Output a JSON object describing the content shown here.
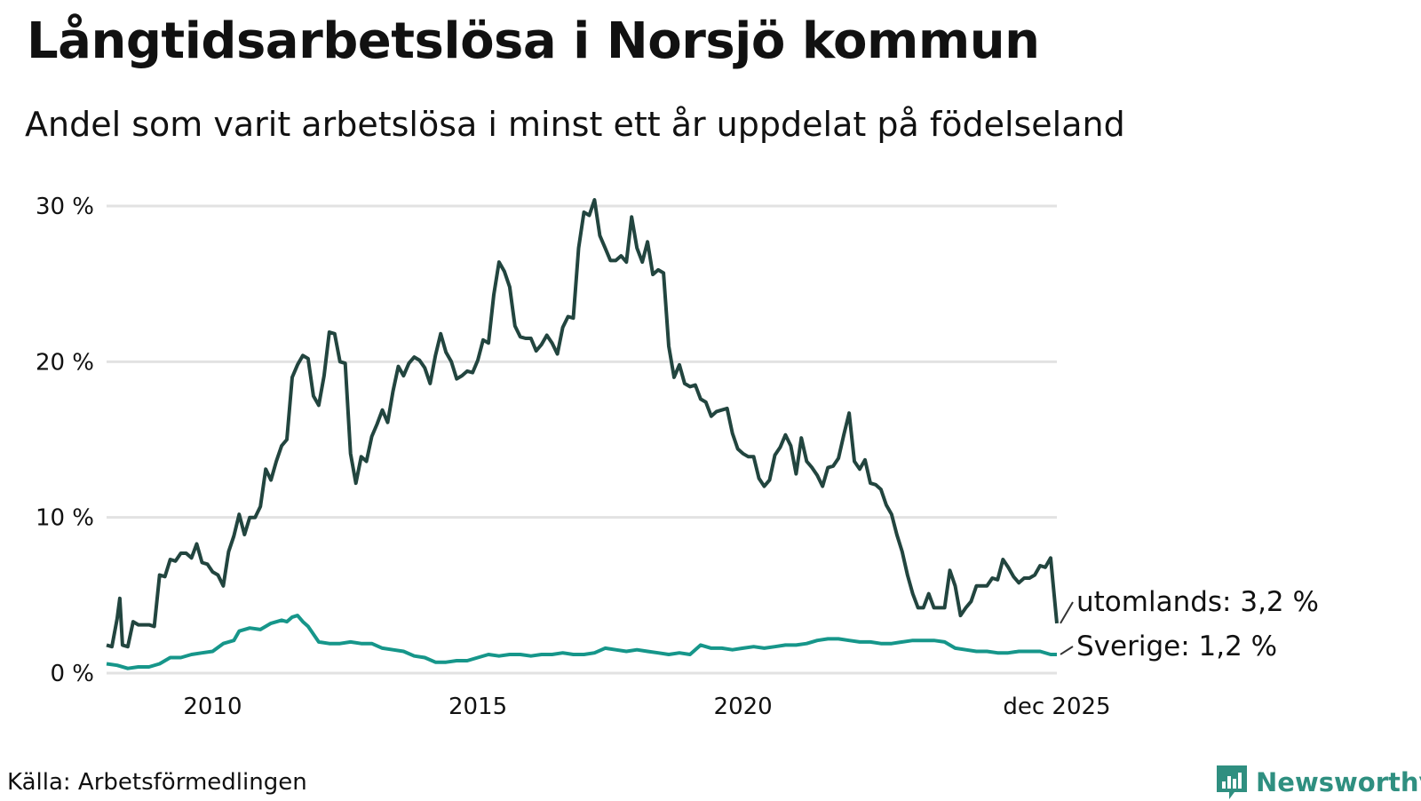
{
  "title": "Långtidsarbetslösa i Norsjö kommun",
  "subtitle": "Andel som varit arbetslösa i minst ett år uppdelat på födelseland",
  "source": "Källa: Arbetsförmedlingen",
  "brand": "Newsworthy",
  "brand_icon": "newsworthy-logo-icon",
  "chart_data": {
    "type": "line",
    "title": "Långtidsarbetslösa i Norsjö kommun",
    "xlabel": "",
    "ylabel": "",
    "xlim": [
      2008.0,
      2025.917
    ],
    "ylim": [
      0,
      30
    ],
    "yticks": [
      0,
      10,
      20,
      30
    ],
    "yticklabels": [
      "0 %",
      "10 %",
      "20 %",
      "30 %"
    ],
    "xticks": [
      2010,
      2015,
      2020,
      2025.917
    ],
    "xticklabels": [
      "2010",
      "2015",
      "2020",
      "dec 2025"
    ],
    "grid": true,
    "legend": "end-of-line labels",
    "series": [
      {
        "name": "utomlands",
        "label": "utomlands: 3,2 %",
        "color": "#22453f",
        "points": [
          [
            2008.0,
            1.8
          ],
          [
            2008.1,
            1.7
          ],
          [
            2008.2,
            3.5
          ],
          [
            2008.25,
            4.8
          ],
          [
            2008.3,
            1.8
          ],
          [
            2008.4,
            1.7
          ],
          [
            2008.5,
            3.3
          ],
          [
            2008.6,
            3.1
          ],
          [
            2008.8,
            3.1
          ],
          [
            2008.9,
            3.0
          ],
          [
            2009.0,
            6.3
          ],
          [
            2009.1,
            6.2
          ],
          [
            2009.2,
            7.3
          ],
          [
            2009.3,
            7.2
          ],
          [
            2009.4,
            7.7
          ],
          [
            2009.5,
            7.7
          ],
          [
            2009.6,
            7.4
          ],
          [
            2009.7,
            8.3
          ],
          [
            2009.8,
            7.1
          ],
          [
            2009.9,
            7.0
          ],
          [
            2010.0,
            6.5
          ],
          [
            2010.1,
            6.3
          ],
          [
            2010.2,
            5.6
          ],
          [
            2010.3,
            7.8
          ],
          [
            2010.4,
            8.8
          ],
          [
            2010.5,
            10.2
          ],
          [
            2010.6,
            8.9
          ],
          [
            2010.7,
            10.0
          ],
          [
            2010.8,
            10.0
          ],
          [
            2010.9,
            10.7
          ],
          [
            2011.0,
            13.1
          ],
          [
            2011.1,
            12.4
          ],
          [
            2011.2,
            13.6
          ],
          [
            2011.3,
            14.6
          ],
          [
            2011.4,
            15.0
          ],
          [
            2011.5,
            19.0
          ],
          [
            2011.6,
            19.8
          ],
          [
            2011.7,
            20.4
          ],
          [
            2011.8,
            20.2
          ],
          [
            2011.9,
            17.8
          ],
          [
            2012.0,
            17.2
          ],
          [
            2012.1,
            19.1
          ],
          [
            2012.2,
            21.9
          ],
          [
            2012.3,
            21.8
          ],
          [
            2012.4,
            20.0
          ],
          [
            2012.5,
            19.9
          ],
          [
            2012.6,
            14.1
          ],
          [
            2012.7,
            12.2
          ],
          [
            2012.8,
            13.9
          ],
          [
            2012.9,
            13.6
          ],
          [
            2013.0,
            15.2
          ],
          [
            2013.1,
            16.0
          ],
          [
            2013.2,
            16.9
          ],
          [
            2013.3,
            16.1
          ],
          [
            2013.4,
            18.1
          ],
          [
            2013.5,
            19.7
          ],
          [
            2013.6,
            19.1
          ],
          [
            2013.7,
            19.9
          ],
          [
            2013.8,
            20.3
          ],
          [
            2013.9,
            20.1
          ],
          [
            2014.0,
            19.6
          ],
          [
            2014.1,
            18.6
          ],
          [
            2014.2,
            20.4
          ],
          [
            2014.3,
            21.8
          ],
          [
            2014.4,
            20.6
          ],
          [
            2014.5,
            20.0
          ],
          [
            2014.6,
            18.9
          ],
          [
            2014.7,
            19.1
          ],
          [
            2014.8,
            19.4
          ],
          [
            2014.9,
            19.3
          ],
          [
            2015.0,
            20.1
          ],
          [
            2015.1,
            21.4
          ],
          [
            2015.2,
            21.2
          ],
          [
            2015.3,
            24.3
          ],
          [
            2015.4,
            26.4
          ],
          [
            2015.5,
            25.8
          ],
          [
            2015.6,
            24.8
          ],
          [
            2015.7,
            22.3
          ],
          [
            2015.8,
            21.6
          ],
          [
            2015.9,
            21.5
          ],
          [
            2016.0,
            21.5
          ],
          [
            2016.1,
            20.7
          ],
          [
            2016.2,
            21.1
          ],
          [
            2016.3,
            21.7
          ],
          [
            2016.4,
            21.2
          ],
          [
            2016.5,
            20.5
          ],
          [
            2016.6,
            22.2
          ],
          [
            2016.7,
            22.9
          ],
          [
            2016.8,
            22.8
          ],
          [
            2016.9,
            27.3
          ],
          [
            2017.0,
            29.6
          ],
          [
            2017.1,
            29.4
          ],
          [
            2017.2,
            30.4
          ],
          [
            2017.3,
            28.1
          ],
          [
            2017.4,
            27.3
          ],
          [
            2017.5,
            26.5
          ],
          [
            2017.6,
            26.5
          ],
          [
            2017.7,
            26.8
          ],
          [
            2017.8,
            26.4
          ],
          [
            2017.9,
            29.3
          ],
          [
            2018.0,
            27.3
          ],
          [
            2018.1,
            26.4
          ],
          [
            2018.2,
            27.7
          ],
          [
            2018.3,
            25.6
          ],
          [
            2018.4,
            25.9
          ],
          [
            2018.5,
            25.7
          ],
          [
            2018.6,
            21.0
          ],
          [
            2018.7,
            19.0
          ],
          [
            2018.8,
            19.8
          ],
          [
            2018.9,
            18.6
          ],
          [
            2019.0,
            18.4
          ],
          [
            2019.1,
            18.5
          ],
          [
            2019.2,
            17.6
          ],
          [
            2019.3,
            17.4
          ],
          [
            2019.4,
            16.5
          ],
          [
            2019.5,
            16.8
          ],
          [
            2019.6,
            16.9
          ],
          [
            2019.7,
            17.0
          ],
          [
            2019.8,
            15.4
          ],
          [
            2019.9,
            14.4
          ],
          [
            2020.0,
            14.1
          ],
          [
            2020.1,
            13.9
          ],
          [
            2020.2,
            13.9
          ],
          [
            2020.3,
            12.5
          ],
          [
            2020.4,
            12.0
          ],
          [
            2020.5,
            12.4
          ],
          [
            2020.6,
            14.0
          ],
          [
            2020.7,
            14.5
          ],
          [
            2020.8,
            15.3
          ],
          [
            2020.9,
            14.6
          ],
          [
            2021.0,
            12.8
          ],
          [
            2021.1,
            15.1
          ],
          [
            2021.2,
            13.6
          ],
          [
            2021.3,
            13.2
          ],
          [
            2021.4,
            12.7
          ],
          [
            2021.5,
            12.0
          ],
          [
            2021.6,
            13.2
          ],
          [
            2021.7,
            13.3
          ],
          [
            2021.8,
            13.8
          ],
          [
            2021.9,
            15.3
          ],
          [
            2022.0,
            16.7
          ],
          [
            2022.1,
            13.6
          ],
          [
            2022.2,
            13.1
          ],
          [
            2022.3,
            13.7
          ],
          [
            2022.4,
            12.2
          ],
          [
            2022.5,
            12.1
          ],
          [
            2022.6,
            11.8
          ],
          [
            2022.7,
            10.8
          ],
          [
            2022.8,
            10.2
          ],
          [
            2022.9,
            8.9
          ],
          [
            2023.0,
            7.8
          ],
          [
            2023.1,
            6.3
          ],
          [
            2023.2,
            5.1
          ],
          [
            2023.3,
            4.2
          ],
          [
            2023.4,
            4.2
          ],
          [
            2023.5,
            5.1
          ],
          [
            2023.6,
            4.2
          ],
          [
            2023.7,
            4.2
          ],
          [
            2023.8,
            4.2
          ],
          [
            2023.9,
            6.6
          ],
          [
            2024.0,
            5.6
          ],
          [
            2024.1,
            3.7
          ],
          [
            2024.2,
            4.2
          ],
          [
            2024.3,
            4.6
          ],
          [
            2024.4,
            5.6
          ],
          [
            2024.5,
            5.6
          ],
          [
            2024.6,
            5.6
          ],
          [
            2024.7,
            6.1
          ],
          [
            2024.8,
            6.0
          ],
          [
            2024.9,
            7.3
          ],
          [
            2025.0,
            6.8
          ],
          [
            2025.1,
            6.2
          ],
          [
            2025.2,
            5.8
          ],
          [
            2025.3,
            6.1
          ],
          [
            2025.4,
            6.1
          ],
          [
            2025.5,
            6.3
          ],
          [
            2025.6,
            6.9
          ],
          [
            2025.7,
            6.8
          ],
          [
            2025.8,
            7.4
          ],
          [
            2025.917,
            3.2
          ]
        ]
      },
      {
        "name": "Sverige",
        "label": "Sverige: 1,2 %",
        "color": "#16968a",
        "points": [
          [
            2008.0,
            0.6
          ],
          [
            2008.2,
            0.5
          ],
          [
            2008.4,
            0.3
          ],
          [
            2008.6,
            0.4
          ],
          [
            2008.8,
            0.4
          ],
          [
            2009.0,
            0.6
          ],
          [
            2009.2,
            1.0
          ],
          [
            2009.4,
            1.0
          ],
          [
            2009.6,
            1.2
          ],
          [
            2009.8,
            1.3
          ],
          [
            2010.0,
            1.4
          ],
          [
            2010.2,
            1.9
          ],
          [
            2010.4,
            2.1
          ],
          [
            2010.5,
            2.7
          ],
          [
            2010.7,
            2.9
          ],
          [
            2010.9,
            2.8
          ],
          [
            2011.1,
            3.2
          ],
          [
            2011.3,
            3.4
          ],
          [
            2011.4,
            3.3
          ],
          [
            2011.5,
            3.6
          ],
          [
            2011.6,
            3.7
          ],
          [
            2011.7,
            3.3
          ],
          [
            2011.8,
            3.0
          ],
          [
            2012.0,
            2.0
          ],
          [
            2012.2,
            1.9
          ],
          [
            2012.4,
            1.9
          ],
          [
            2012.6,
            2.0
          ],
          [
            2012.8,
            1.9
          ],
          [
            2013.0,
            1.9
          ],
          [
            2013.2,
            1.6
          ],
          [
            2013.4,
            1.5
          ],
          [
            2013.6,
            1.4
          ],
          [
            2013.8,
            1.1
          ],
          [
            2014.0,
            1.0
          ],
          [
            2014.2,
            0.7
          ],
          [
            2014.4,
            0.7
          ],
          [
            2014.6,
            0.8
          ],
          [
            2014.8,
            0.8
          ],
          [
            2015.0,
            1.0
          ],
          [
            2015.2,
            1.2
          ],
          [
            2015.4,
            1.1
          ],
          [
            2015.6,
            1.2
          ],
          [
            2015.8,
            1.2
          ],
          [
            2016.0,
            1.1
          ],
          [
            2016.2,
            1.2
          ],
          [
            2016.4,
            1.2
          ],
          [
            2016.6,
            1.3
          ],
          [
            2016.8,
            1.2
          ],
          [
            2017.0,
            1.2
          ],
          [
            2017.2,
            1.3
          ],
          [
            2017.4,
            1.6
          ],
          [
            2017.6,
            1.5
          ],
          [
            2017.8,
            1.4
          ],
          [
            2018.0,
            1.5
          ],
          [
            2018.2,
            1.4
          ],
          [
            2018.4,
            1.3
          ],
          [
            2018.6,
            1.2
          ],
          [
            2018.8,
            1.3
          ],
          [
            2019.0,
            1.2
          ],
          [
            2019.2,
            1.8
          ],
          [
            2019.4,
            1.6
          ],
          [
            2019.6,
            1.6
          ],
          [
            2019.8,
            1.5
          ],
          [
            2020.0,
            1.6
          ],
          [
            2020.2,
            1.7
          ],
          [
            2020.4,
            1.6
          ],
          [
            2020.6,
            1.7
          ],
          [
            2020.8,
            1.8
          ],
          [
            2021.0,
            1.8
          ],
          [
            2021.2,
            1.9
          ],
          [
            2021.4,
            2.1
          ],
          [
            2021.6,
            2.2
          ],
          [
            2021.8,
            2.2
          ],
          [
            2022.0,
            2.1
          ],
          [
            2022.2,
            2.0
          ],
          [
            2022.4,
            2.0
          ],
          [
            2022.6,
            1.9
          ],
          [
            2022.8,
            1.9
          ],
          [
            2023.0,
            2.0
          ],
          [
            2023.2,
            2.1
          ],
          [
            2023.4,
            2.1
          ],
          [
            2023.6,
            2.1
          ],
          [
            2023.8,
            2.0
          ],
          [
            2024.0,
            1.6
          ],
          [
            2024.2,
            1.5
          ],
          [
            2024.4,
            1.4
          ],
          [
            2024.6,
            1.4
          ],
          [
            2024.8,
            1.3
          ],
          [
            2025.0,
            1.3
          ],
          [
            2025.2,
            1.4
          ],
          [
            2025.4,
            1.4
          ],
          [
            2025.6,
            1.4
          ],
          [
            2025.8,
            1.2
          ],
          [
            2025.917,
            1.2
          ]
        ]
      }
    ]
  }
}
